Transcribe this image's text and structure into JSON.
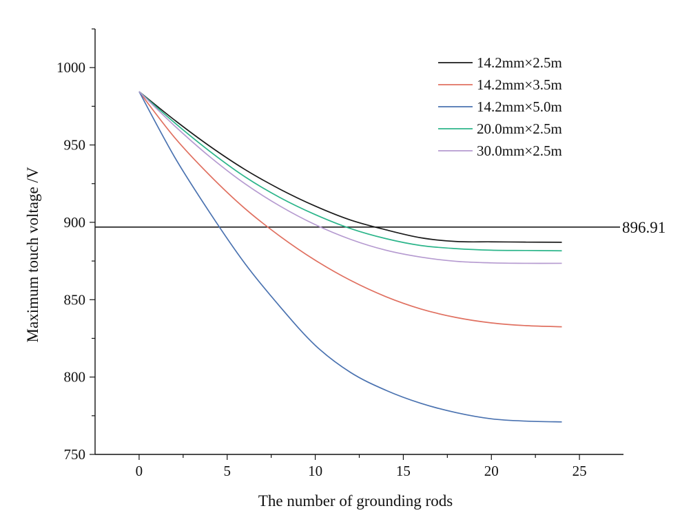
{
  "chart_data": {
    "type": "line",
    "xlabel": "The number of grounding rods",
    "ylabel": "Maximum touch voltage /V",
    "xlim": [
      -2.5,
      27.5
    ],
    "ylim": [
      750,
      1025
    ],
    "x_ticks": [
      0,
      5,
      10,
      15,
      20,
      25
    ],
    "y_ticks": [
      750,
      800,
      850,
      900,
      950,
      1000
    ],
    "grid": false,
    "legend_position": "top-right",
    "x": [
      0,
      2,
      4,
      6,
      8,
      10,
      12,
      14,
      16,
      18,
      20,
      22,
      24
    ],
    "series": [
      {
        "name": "14.2mm×2.5m",
        "color": "#1a1a1a",
        "values": [
          984.5,
          966.2,
          949.3,
          934.2,
          921.4,
          910.5,
          901.5,
          895.2,
          890.0,
          887.6,
          887.4,
          887.2,
          887.1
        ]
      },
      {
        "name": "14.2mm×3.5m",
        "color": "#e07060",
        "values": [
          984.5,
          955.0,
          930.5,
          909.0,
          891.0,
          875.5,
          862.5,
          852.0,
          844.0,
          838.5,
          835.0,
          833.2,
          832.5
        ]
      },
      {
        "name": "14.2mm×5.0m",
        "color": "#4a72b0",
        "values": [
          984.5,
          942.5,
          906.5,
          873.5,
          845.5,
          820.5,
          803.0,
          791.5,
          783.0,
          777.0,
          773.0,
          771.5,
          771.0
        ]
      },
      {
        "name": "20.0mm×2.5m",
        "color": "#2bb58a",
        "values": [
          984.5,
          964.5,
          946.0,
          929.5,
          916.0,
          905.0,
          896.0,
          889.5,
          885.0,
          883.0,
          882.0,
          881.8,
          881.6
        ]
      },
      {
        "name": "30.0mm×2.5m",
        "color": "#b59ad0",
        "values": [
          984.5,
          962.5,
          942.5,
          925.0,
          910.5,
          898.5,
          889.0,
          882.0,
          877.5,
          874.8,
          873.8,
          873.5,
          873.5
        ]
      }
    ],
    "reference_line": {
      "value": 896.91,
      "label": "896.91",
      "color": "#1a1a1a"
    }
  }
}
